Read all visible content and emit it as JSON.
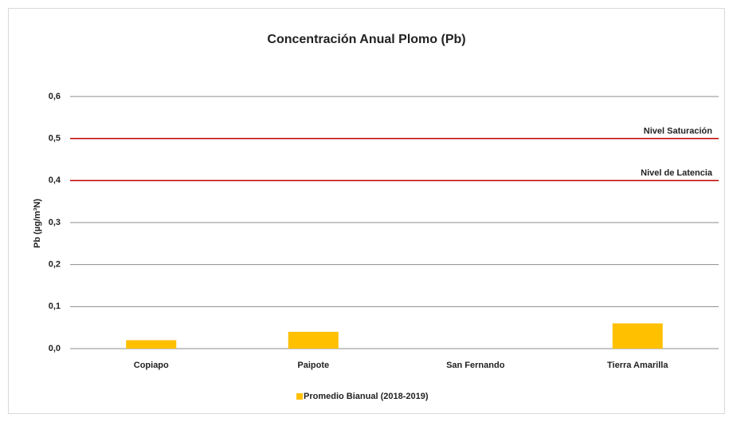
{
  "chart_data": {
    "type": "bar",
    "title": "Concentración Anual Plomo (Pb)",
    "y_label": "Pb (µg/m³N)",
    "categories": [
      "Copiapo",
      "Paipote",
      "San Fernando",
      "Tierra Amarilla"
    ],
    "series": [
      {
        "name": "Promedio Bianual (2018-2019)",
        "color": "#ffc000",
        "values": [
          0.02,
          0.04,
          null,
          0.06
        ]
      }
    ],
    "reference_lines": [
      {
        "label": "Nivel Saturación",
        "value": 0.5,
        "color": "#c00000"
      },
      {
        "label": "Nivel de Latencia",
        "value": 0.4,
        "color": "#c00000"
      }
    ],
    "ylim": [
      0,
      0.6
    ],
    "yticks": [
      {
        "value": 0,
        "label": "0,0"
      },
      {
        "value": 0.1,
        "label": "0,1"
      },
      {
        "value": 0.2,
        "label": "0,2"
      },
      {
        "value": 0.3,
        "label": "0,3"
      },
      {
        "value": 0.4,
        "label": "0,4"
      },
      {
        "value": 0.5,
        "label": "0,5"
      },
      {
        "value": 0.6,
        "label": "0,6"
      }
    ],
    "grid": true,
    "legend": "bottom"
  }
}
